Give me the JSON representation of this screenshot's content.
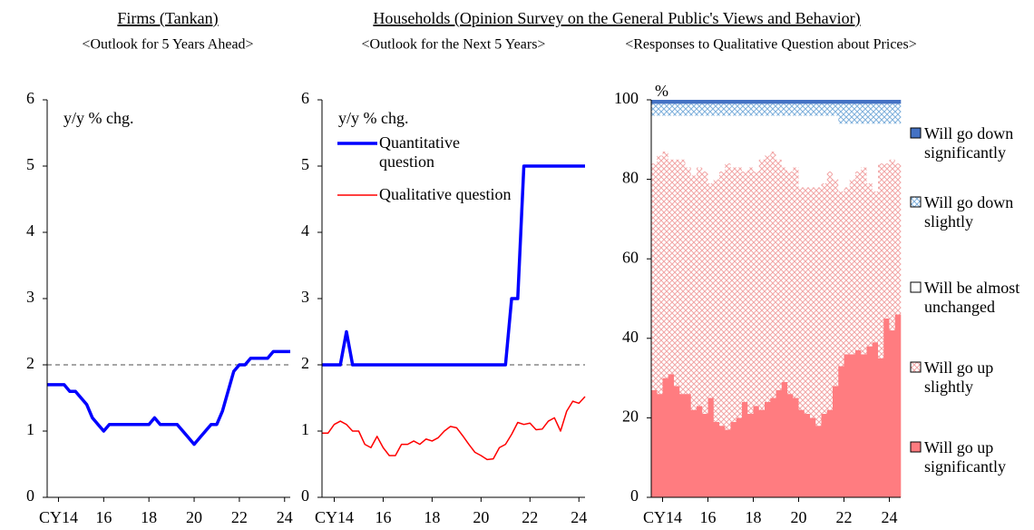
{
  "headers": {
    "firms": "Firms (Tankan)",
    "households": "Households (Opinion Survey on the General Public's Views and Behavior)"
  },
  "chart_data": [
    {
      "type": "line",
      "subtitle": "<Outlook for 5 Years Ahead>",
      "ylabel": "y/y % chg.",
      "x": [
        2014,
        2014.25,
        2014.5,
        2014.75,
        2015,
        2015.25,
        2015.5,
        2015.75,
        2016,
        2016.25,
        2016.5,
        2016.75,
        2017,
        2017.25,
        2017.5,
        2017.75,
        2018,
        2018.25,
        2018.5,
        2018.75,
        2019,
        2019.25,
        2019.5,
        2019.75,
        2020,
        2020.25,
        2020.5,
        2020.75,
        2021,
        2021.25,
        2021.5,
        2021.75,
        2022,
        2022.25,
        2022.5,
        2022.75,
        2023,
        2023.25,
        2023.5,
        2023.75,
        2024,
        2024.25,
        2024.5,
        2024.75
      ],
      "series": [
        {
          "color": "#0000ff",
          "width": 3.5,
          "values": [
            1.7,
            1.7,
            1.7,
            1.7,
            1.6,
            1.6,
            1.5,
            1.4,
            1.2,
            1.1,
            1.0,
            1.1,
            1.1,
            1.1,
            1.1,
            1.1,
            1.1,
            1.1,
            1.1,
            1.2,
            1.1,
            1.1,
            1.1,
            1.1,
            1.0,
            0.9,
            0.8,
            0.9,
            1.0,
            1.1,
            1.1,
            1.3,
            1.6,
            1.9,
            2.0,
            2.0,
            2.1,
            2.1,
            2.1,
            2.1,
            2.2,
            2.2,
            2.2,
            2.2
          ]
        }
      ],
      "ref_line": 2,
      "xlim": [
        2014,
        2024.75
      ],
      "ylim": [
        0,
        6
      ],
      "yticks": [
        0,
        1,
        2,
        3,
        4,
        5,
        6
      ],
      "xticks": [
        {
          "value": 2014.5,
          "label": "CY14"
        },
        {
          "value": 2016.5,
          "label": "16"
        },
        {
          "value": 2018.5,
          "label": "18"
        },
        {
          "value": 2020.5,
          "label": "20"
        },
        {
          "value": 2022.5,
          "label": "22"
        },
        {
          "value": 2024.5,
          "label": "24"
        }
      ]
    },
    {
      "type": "line",
      "subtitle": "<Outlook for the Next 5 Years>",
      "ylabel": "y/y % chg.",
      "x": [
        2014,
        2014.25,
        2014.5,
        2014.75,
        2015,
        2015.25,
        2015.5,
        2015.75,
        2016,
        2016.25,
        2016.5,
        2016.75,
        2017,
        2017.25,
        2017.5,
        2017.75,
        2018,
        2018.25,
        2018.5,
        2018.75,
        2019,
        2019.25,
        2019.5,
        2019.75,
        2020,
        2020.25,
        2020.5,
        2020.75,
        2021,
        2021.25,
        2021.5,
        2021.75,
        2022,
        2022.25,
        2022.5,
        2022.75,
        2023,
        2023.25,
        2023.5,
        2023.75,
        2024,
        2024.25,
        2024.5,
        2024.75
      ],
      "series": [
        {
          "name": "Quantitative question",
          "color": "#0000ff",
          "width": 3.5,
          "values": [
            2,
            2,
            2,
            2,
            2.5,
            2,
            2,
            2,
            2,
            2,
            2,
            2,
            2,
            2,
            2,
            2,
            2,
            2,
            2,
            2,
            2,
            2,
            2,
            2,
            2,
            2,
            2,
            2,
            2,
            2,
            2,
            3,
            3,
            5,
            5,
            5,
            5,
            5,
            5,
            5,
            5,
            5,
            5,
            5
          ]
        },
        {
          "name": "Qualitative question",
          "color": "#ff0000",
          "width": 1.5,
          "values": [
            0.97,
            0.97,
            1.1,
            1.15,
            1.1,
            1.0,
            1.0,
            0.8,
            0.75,
            0.92,
            0.75,
            0.63,
            0.63,
            0.8,
            0.8,
            0.85,
            0.8,
            0.88,
            0.85,
            0.9,
            1.0,
            1.07,
            1.05,
            0.93,
            0.8,
            0.68,
            0.63,
            0.57,
            0.58,
            0.75,
            0.8,
            0.95,
            1.13,
            1.1,
            1.12,
            1.02,
            1.03,
            1.15,
            1.2,
            1.0,
            1.3,
            1.45,
            1.42,
            1.52
          ]
        }
      ],
      "ref_line": 2,
      "xlim": [
        2014,
        2024.75
      ],
      "ylim": [
        0,
        6
      ],
      "yticks": [
        0,
        1,
        2,
        3,
        4,
        5,
        6
      ],
      "xticks": [
        {
          "value": 2014.5,
          "label": "CY14"
        },
        {
          "value": 2016.5,
          "label": "16"
        },
        {
          "value": 2018.5,
          "label": "18"
        },
        {
          "value": 2020.5,
          "label": "20"
        },
        {
          "value": 2022.5,
          "label": "22"
        },
        {
          "value": 2024.5,
          "label": "24"
        }
      ]
    },
    {
      "type": "stacked_bar",
      "subtitle": "<Responses to Qualitative Question about Prices>",
      "ylabel": "%",
      "x": [
        2014,
        2014.25,
        2014.5,
        2014.75,
        2015,
        2015.25,
        2015.5,
        2015.75,
        2016,
        2016.25,
        2016.5,
        2016.75,
        2017,
        2017.25,
        2017.5,
        2017.75,
        2018,
        2018.25,
        2018.5,
        2018.75,
        2019,
        2019.25,
        2019.5,
        2019.75,
        2020,
        2020.25,
        2020.5,
        2020.75,
        2021,
        2021.25,
        2021.5,
        2021.75,
        2022,
        2022.25,
        2022.5,
        2022.75,
        2023,
        2023.25,
        2023.5,
        2023.75,
        2024,
        2024.25,
        2024.5,
        2024.75
      ],
      "bar_width": 0.25,
      "series": [
        {
          "name": "Will go up significantly",
          "color": "#ff7c80",
          "hatch": false,
          "values": [
            27,
            26,
            30,
            31,
            28,
            26,
            26,
            22,
            23,
            21,
            25,
            19,
            18,
            17,
            19,
            20,
            24,
            21,
            23,
            22,
            24,
            25,
            27,
            29,
            26,
            25,
            22,
            21,
            20,
            18,
            21,
            22,
            28,
            33,
            36,
            36,
            37,
            36,
            38,
            39,
            35,
            45,
            42,
            46
          ]
        },
        {
          "name": "Will go up slightly",
          "color": "#f2a6a6",
          "hatch": true,
          "values": [
            57,
            60,
            57,
            54,
            57,
            59,
            57,
            59,
            60,
            61,
            54,
            61,
            64,
            67,
            64,
            63,
            58,
            62,
            59,
            63,
            62,
            62,
            58,
            54,
            56,
            58,
            56,
            57,
            58,
            60,
            58,
            60,
            52,
            44,
            42,
            44,
            45,
            47,
            41,
            38,
            49,
            39,
            43,
            38
          ]
        },
        {
          "name": "Will be almost unchanged",
          "color": "#ffffff",
          "hatch": false,
          "values": [
            12,
            10,
            9,
            11,
            11,
            11,
            13,
            15,
            13,
            14,
            17,
            16,
            14,
            12,
            13,
            13,
            14,
            13,
            14,
            11,
            10,
            9,
            11,
            13,
            14,
            13,
            18,
            18,
            18,
            18,
            17,
            14,
            16,
            17,
            16,
            14,
            12,
            11,
            15,
            17,
            10,
            10,
            9,
            10
          ]
        },
        {
          "name": "Will go down slightly",
          "color": "#7fb0dc",
          "hatch": true,
          "values": [
            3,
            3,
            3,
            3,
            3,
            3,
            3,
            3,
            3,
            3,
            3,
            3,
            3,
            3,
            3,
            3,
            3,
            3,
            3,
            3,
            3,
            3,
            3,
            3,
            3,
            3,
            3,
            3,
            3,
            3,
            3,
            3,
            3,
            5,
            5,
            5,
            5,
            5,
            5,
            5,
            5,
            5,
            5,
            5
          ]
        },
        {
          "name": "Will go down significantly",
          "color": "#4472c4",
          "hatch": false,
          "values": [
            1,
            1,
            1,
            1,
            1,
            1,
            1,
            1,
            1,
            1,
            1,
            1,
            1,
            1,
            1,
            1,
            1,
            1,
            1,
            1,
            1,
            1,
            1,
            1,
            1,
            1,
            1,
            1,
            1,
            1,
            1,
            1,
            1,
            1,
            1,
            1,
            1,
            1,
            1,
            1,
            1,
            1,
            1,
            1
          ]
        }
      ],
      "xlim": [
        2014,
        2025
      ],
      "ylim": [
        0,
        100
      ],
      "yticks": [
        0,
        20,
        40,
        60,
        80,
        100
      ],
      "xticks": [
        {
          "value": 2014.5,
          "label": "CY14"
        },
        {
          "value": 2016.5,
          "label": "16"
        },
        {
          "value": 2018.5,
          "label": "18"
        },
        {
          "value": 2020.5,
          "label": "20"
        },
        {
          "value": 2022.5,
          "label": "22"
        },
        {
          "value": 2024.5,
          "label": "24"
        }
      ]
    }
  ]
}
